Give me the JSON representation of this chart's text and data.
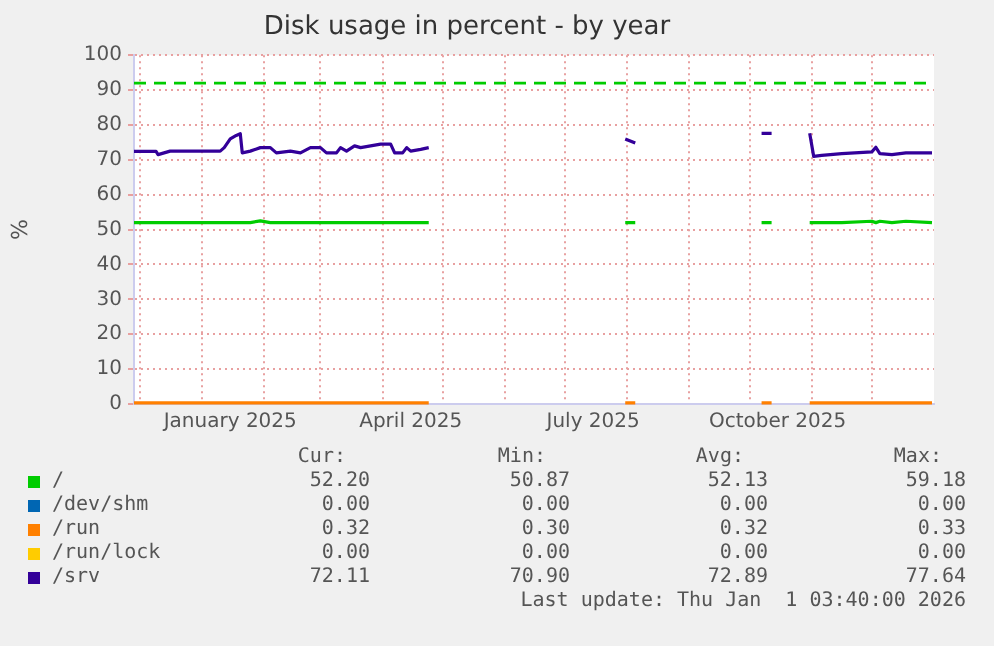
{
  "chart_data": {
    "type": "line",
    "title": "Disk usage in percent - by year",
    "ylabel": "%",
    "grid": true,
    "legend": "bottom",
    "marker": "none",
    "line_style": "solid",
    "xlim": [
      "2024-11-28",
      "2026-01-01"
    ],
    "xticks": [
      {
        "value": "2024-12-01",
        "label": null
      },
      {
        "value": "2025-01-01",
        "label": null
      },
      {
        "value": "2025-01-15",
        "label": "January 2025"
      },
      {
        "value": "2025-02-01",
        "label": null
      },
      {
        "value": "2025-03-01",
        "label": null
      },
      {
        "value": "2025-04-01",
        "label": null
      },
      {
        "value": "2025-04-15",
        "label": "April 2025"
      },
      {
        "value": "2025-05-01",
        "label": null
      },
      {
        "value": "2025-06-01",
        "label": null
      },
      {
        "value": "2025-07-01",
        "label": null
      },
      {
        "value": "2025-07-15",
        "label": "July 2025"
      },
      {
        "value": "2025-08-01",
        "label": null
      },
      {
        "value": "2025-09-01",
        "label": null
      },
      {
        "value": "2025-10-01",
        "label": null
      },
      {
        "value": "2025-10-15",
        "label": "October 2025"
      },
      {
        "value": "2025-11-01",
        "label": null
      },
      {
        "value": "2025-12-01",
        "label": null
      }
    ],
    "ylim": [
      0,
      100
    ],
    "yticks": [
      0,
      10,
      20,
      30,
      40,
      50,
      60,
      70,
      80,
      90,
      100
    ],
    "ref_lines": [
      {
        "axis": "y",
        "value": 92,
        "color": "#00cc00",
        "line_style": "dashed"
      }
    ],
    "x": [
      "2024-11-28",
      "2024-12-09",
      "2024-12-10",
      "2024-12-16",
      "2025-01-10",
      "2025-01-12",
      "2025-01-15",
      "2025-01-18",
      "2025-01-20",
      "2025-01-21",
      "2025-01-25",
      "2025-01-30",
      "2025-02-04",
      "2025-02-07",
      "2025-02-14",
      "2025-02-19",
      "2025-02-24",
      "2025-03-01",
      "2025-03-04",
      "2025-03-09",
      "2025-03-11",
      "2025-03-14",
      "2025-03-18",
      "2025-03-21",
      "2025-03-26",
      "2025-03-31",
      "2025-04-05",
      "2025-04-07",
      "2025-04-11",
      "2025-04-13",
      "2025-04-15",
      "2025-04-20",
      "2025-04-24",
      "2025-06-01",
      "2025-07-31",
      "2025-08-05",
      "2025-09-01",
      "2025-10-07",
      "2025-10-12",
      "2025-10-20",
      "2025-10-31",
      "2025-11-02",
      "2025-11-06",
      "2025-11-16",
      "2025-12-01",
      "2025-12-03",
      "2025-12-05",
      "2025-12-11",
      "2025-12-18",
      "2025-12-31"
    ],
    "series": [
      {
        "name": "/",
        "color": "#00cc00",
        "values": [
          52,
          52,
          52,
          52,
          52,
          52,
          52,
          52,
          52,
          52,
          52,
          52.5,
          52,
          52,
          52,
          52,
          52,
          52,
          52,
          52,
          52,
          52,
          52,
          52,
          52,
          52,
          52,
          52,
          52,
          52,
          52,
          52,
          52,
          null,
          52,
          52,
          null,
          52,
          52,
          null,
          52,
          52,
          52,
          52,
          52.4,
          52,
          52.4,
          52,
          52.4,
          52
        ]
      },
      {
        "name": "/dev/shm",
        "color": "#0066b3",
        "values": [
          null,
          null,
          null,
          null,
          null,
          null,
          null,
          null,
          null,
          null,
          null,
          null,
          null,
          null,
          null,
          null,
          null,
          null,
          null,
          null,
          null,
          null,
          null,
          null,
          null,
          null,
          null,
          null,
          null,
          null,
          null,
          null,
          null,
          null,
          null,
          null,
          null,
          null,
          null,
          null,
          null,
          null,
          null,
          null,
          null,
          null,
          null,
          null,
          null,
          null
        ]
      },
      {
        "name": "/run",
        "color": "#ff8000",
        "values": [
          0.3,
          0.3,
          0.3,
          0.3,
          0.3,
          0.3,
          0.3,
          0.3,
          0.3,
          0.3,
          0.3,
          0.3,
          0.3,
          0.3,
          0.3,
          0.3,
          0.3,
          0.3,
          0.3,
          0.3,
          0.3,
          0.3,
          0.3,
          0.3,
          0.3,
          0.3,
          0.3,
          0.3,
          0.3,
          0.3,
          0.3,
          0.3,
          0.3,
          null,
          0.3,
          0.3,
          null,
          0.3,
          0.3,
          null,
          0.3,
          0.3,
          0.3,
          0.3,
          0.3,
          0.3,
          0.3,
          0.3,
          0.3,
          0.3
        ]
      },
      {
        "name": "/run/lock",
        "color": "#ffcc00",
        "values": [
          null,
          null,
          null,
          null,
          null,
          null,
          null,
          null,
          null,
          null,
          null,
          null,
          null,
          null,
          null,
          null,
          null,
          null,
          null,
          null,
          null,
          null,
          null,
          null,
          null,
          null,
          null,
          null,
          null,
          null,
          null,
          null,
          null,
          null,
          null,
          null,
          null,
          null,
          null,
          null,
          null,
          null,
          null,
          null,
          null,
          null,
          null,
          null,
          null,
          null
        ]
      },
      {
        "name": "/srv",
        "color": "#330099",
        "values": [
          72.4,
          72.4,
          71.5,
          72.5,
          72.5,
          73.5,
          76,
          77,
          77.5,
          72,
          72.5,
          73.5,
          73.5,
          72,
          72.5,
          72,
          73.5,
          73.5,
          72,
          72,
          73.5,
          72.5,
          74,
          73.5,
          74,
          74.5,
          74.5,
          72,
          72,
          73.5,
          72.5,
          73,
          73.5,
          null,
          76,
          74.8,
          null,
          77.6,
          77.6,
          null,
          77.6,
          71,
          71.3,
          71.8,
          72.3,
          73.6,
          71.8,
          71.5,
          72,
          72
        ]
      }
    ],
    "annotations": [
      "Cur:",
      "Min:",
      "Avg:",
      "Max:",
      "52.20",
      "50.87",
      "52.13",
      "59.18",
      "0.00",
      "0.00",
      "0.00",
      "0.00",
      "0.32",
      "0.30",
      "0.32",
      "0.33",
      "0.00",
      "0.00",
      "0.00",
      "0.00",
      "72.11",
      "70.90",
      "72.89",
      "77.64",
      "Last update: Thu Jan  1 03:40:00 2026"
    ]
  }
}
